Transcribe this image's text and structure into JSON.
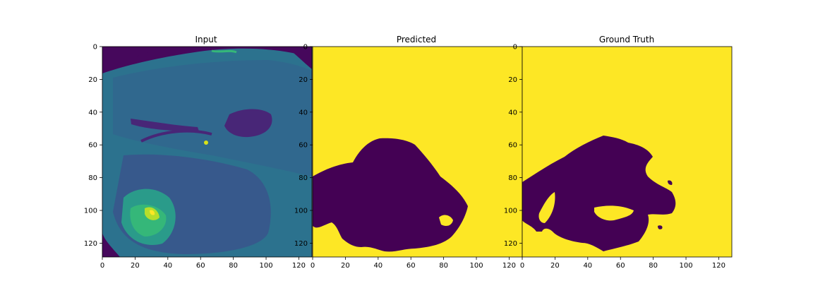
{
  "panels": [
    {
      "title": "Input",
      "image": "mri-slice-viridis",
      "x_ticks": [
        "0",
        "20",
        "40",
        "60",
        "80",
        "100",
        "120"
      ],
      "y_ticks": [
        "0",
        "20",
        "40",
        "60",
        "80",
        "100",
        "120"
      ]
    },
    {
      "title": "Predicted",
      "image": "segmentation-mask",
      "x_ticks": [
        "0",
        "20",
        "40",
        "60",
        "80",
        "100",
        "120"
      ],
      "y_ticks": [
        "0",
        "20",
        "40",
        "60",
        "80",
        "100",
        "120"
      ]
    },
    {
      "title": "Ground Truth",
      "image": "segmentation-mask",
      "x_ticks": [
        "0",
        "20",
        "40",
        "60",
        "80",
        "100",
        "120"
      ],
      "y_ticks": [
        "0",
        "20",
        "40",
        "60",
        "80",
        "100",
        "120"
      ]
    }
  ],
  "colors": {
    "mask_background": "#fde725",
    "mask_region": "#440154",
    "mri_dark": "#46085c",
    "mri_tissue": "#2d708e",
    "mri_bright": "#3aba76",
    "mri_hot": "#d8e219"
  }
}
